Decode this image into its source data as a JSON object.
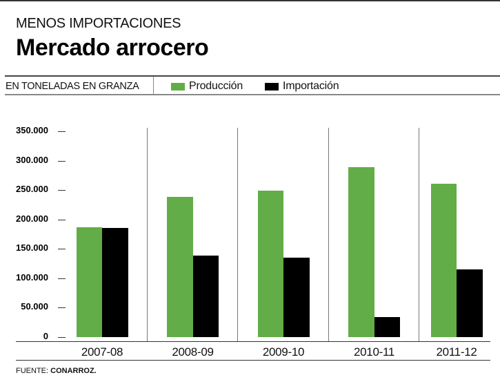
{
  "header": {
    "kicker": "MENOS IMPORTACIONES",
    "title": "Mercado arrocero",
    "unit": "EN TONELADAS EN GRANZA"
  },
  "legend": [
    {
      "label": "Producción",
      "color": "#62ad47"
    },
    {
      "label": "Importación",
      "color": "#000000"
    }
  ],
  "footer": {
    "prefix": "FUENTE:",
    "source": "CONARROZ."
  },
  "chart_data": {
    "type": "bar",
    "title": "Mercado arrocero",
    "subtitle": "MENOS IMPORTACIONES",
    "ylabel": "EN TONELADAS EN GRANZA",
    "xlabel": "",
    "categories": [
      "2007-08",
      "2008-09",
      "2009-10",
      "2010-11",
      "2011-12"
    ],
    "series": [
      {
        "name": "Producción",
        "color": "#62ad47",
        "values": [
          187000,
          238000,
          249000,
          289000,
          261000
        ]
      },
      {
        "name": "Importación",
        "color": "#000000",
        "values": [
          186000,
          139000,
          135000,
          34000,
          115000
        ]
      }
    ],
    "ylim": [
      0,
      350000
    ],
    "yticks": [
      0,
      50000,
      100000,
      150000,
      200000,
      250000,
      300000,
      350000
    ],
    "ytick_labels": [
      "0",
      "50.000",
      "100.000",
      "150.000",
      "200.000",
      "250.000",
      "300.000",
      "350.000"
    ],
    "grid": false,
    "legend_position": "top"
  }
}
